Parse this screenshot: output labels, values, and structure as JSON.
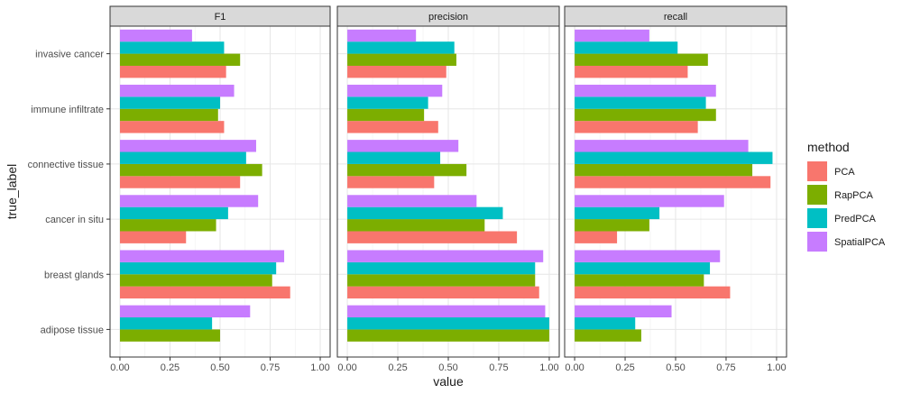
{
  "chart_data": {
    "type": "bar",
    "orientation": "horizontal",
    "facet_by": "metric",
    "xlabel": "value",
    "ylabel": "true_label",
    "xlim": [
      0,
      1
    ],
    "x_ticks": [
      0,
      0.25,
      0.5,
      0.75,
      1
    ],
    "x_tick_labels": [
      "0.00",
      "0.25",
      "0.50",
      "0.75",
      "1.00"
    ],
    "grid": true,
    "categories": [
      "invasive cancer",
      "immune infiltrate",
      "connective tissue",
      "cancer in situ",
      "breast glands",
      "adipose tissue"
    ],
    "legend": {
      "title": "method",
      "position": "right",
      "entries": [
        {
          "name": "PCA",
          "color": "#F8766D"
        },
        {
          "name": "RapPCA",
          "color": "#7CAE00"
        },
        {
          "name": "PredPCA",
          "color": "#00BFC4"
        },
        {
          "name": "SpatialPCA",
          "color": "#C77CFF"
        }
      ]
    },
    "facets": [
      {
        "title": "F1",
        "series": [
          {
            "name": "PCA",
            "values": [
              0.53,
              0.52,
              0.6,
              0.33,
              0.85,
              null
            ]
          },
          {
            "name": "RapPCA",
            "values": [
              0.6,
              0.49,
              0.71,
              0.48,
              0.76,
              0.5
            ]
          },
          {
            "name": "PredPCA",
            "values": [
              0.52,
              0.5,
              0.63,
              0.54,
              0.78,
              0.46
            ]
          },
          {
            "name": "SpatialPCA",
            "values": [
              0.36,
              0.57,
              0.68,
              0.69,
              0.82,
              0.65
            ]
          }
        ]
      },
      {
        "title": "precision",
        "series": [
          {
            "name": "PCA",
            "values": [
              0.49,
              0.45,
              0.43,
              0.84,
              0.95,
              null
            ]
          },
          {
            "name": "RapPCA",
            "values": [
              0.54,
              0.38,
              0.59,
              0.68,
              0.93,
              1.0
            ]
          },
          {
            "name": "PredPCA",
            "values": [
              0.53,
              0.4,
              0.46,
              0.77,
              0.93,
              1.0
            ]
          },
          {
            "name": "SpatialPCA",
            "values": [
              0.34,
              0.47,
              0.55,
              0.64,
              0.97,
              0.98
            ]
          }
        ]
      },
      {
        "title": "recall",
        "series": [
          {
            "name": "PCA",
            "values": [
              0.56,
              0.61,
              0.97,
              0.21,
              0.77,
              null
            ]
          },
          {
            "name": "RapPCA",
            "values": [
              0.66,
              0.7,
              0.88,
              0.37,
              0.64,
              0.33
            ]
          },
          {
            "name": "PredPCA",
            "values": [
              0.51,
              0.65,
              0.98,
              0.42,
              0.67,
              0.3
            ]
          },
          {
            "name": "SpatialPCA",
            "values": [
              0.37,
              0.7,
              0.86,
              0.74,
              0.72,
              0.48
            ]
          }
        ]
      }
    ]
  }
}
